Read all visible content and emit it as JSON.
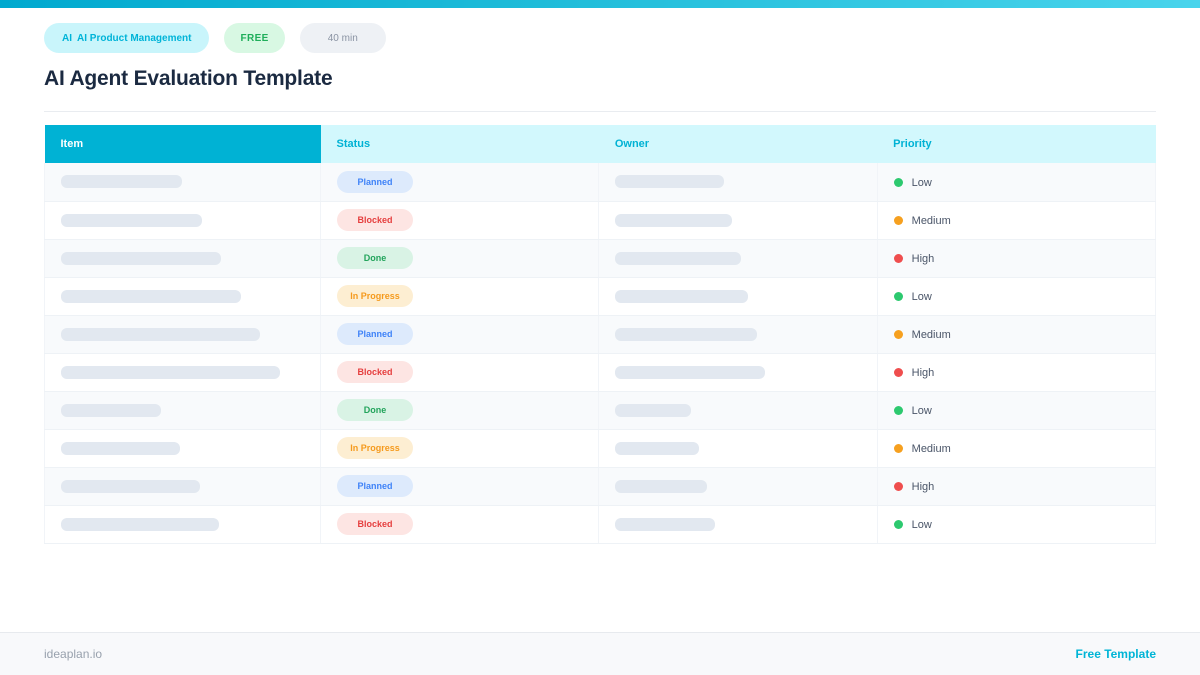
{
  "page": {
    "title": "AI Agent Evaluation Template",
    "badges": {
      "category_icon": "AI",
      "category_label": "AI Product Management",
      "free_label": "FREE",
      "duration_label": "40 min"
    }
  },
  "table": {
    "columns": [
      "Item",
      "Status",
      "Owner",
      "Priority"
    ],
    "status_styles": {
      "Planned": {
        "bg": "#ddeafc",
        "text": "#3f83f8"
      },
      "Blocked": {
        "bg": "#fde5e3",
        "text": "#e53e3e"
      },
      "Done": {
        "bg": "#d9f3e5",
        "text": "#23a45c"
      },
      "In Progress": {
        "bg": "#fdeed2",
        "text": "#f59a1d"
      }
    },
    "priority_styles": {
      "Low": "#2dc96f",
      "Medium": "#f6a01f",
      "High": "#ef4e4e"
    },
    "rows": [
      {
        "status": "Planned",
        "priority": "Low",
        "item_bar_width": 121,
        "owner_bar_width": 109
      },
      {
        "status": "Blocked",
        "priority": "Medium",
        "item_bar_width": 141,
        "owner_bar_width": 117
      },
      {
        "status": "Done",
        "priority": "High",
        "item_bar_width": 160,
        "owner_bar_width": 126
      },
      {
        "status": "In Progress",
        "priority": "Low",
        "item_bar_width": 180,
        "owner_bar_width": 133
      },
      {
        "status": "Planned",
        "priority": "Medium",
        "item_bar_width": 199,
        "owner_bar_width": 142
      },
      {
        "status": "Blocked",
        "priority": "High",
        "item_bar_width": 219,
        "owner_bar_width": 150
      },
      {
        "status": "Done",
        "priority": "Low",
        "item_bar_width": 100,
        "owner_bar_width": 76
      },
      {
        "status": "In Progress",
        "priority": "Medium",
        "item_bar_width": 119,
        "owner_bar_width": 84
      },
      {
        "status": "Planned",
        "priority": "High",
        "item_bar_width": 139,
        "owner_bar_width": 92
      },
      {
        "status": "Blocked",
        "priority": "Low",
        "item_bar_width": 158,
        "owner_bar_width": 100
      }
    ]
  },
  "footer": {
    "site": "ideaplan.io",
    "link_label": "Free Template"
  },
  "colors": {
    "accent_cyan": "#00b2d4",
    "header_dark_bg": "#00b2d4",
    "header_light_bg": "#d2f8fd",
    "placeholder_bar": "#e2e8f0",
    "title_text": "#1b2a41"
  }
}
